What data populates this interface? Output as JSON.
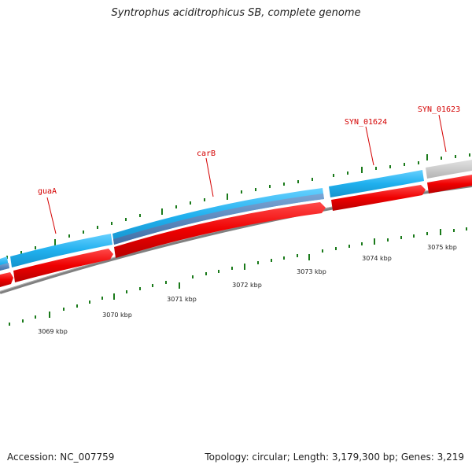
{
  "title": "Syntrophus aciditrophicus SB, complete genome",
  "footer": {
    "accession": "Accession: NC_007759",
    "stats": "Topology: circular; Length: 3,179,300 bp; Genes: 3,219"
  },
  "genes": [
    {
      "name": "guaA"
    },
    {
      "name": "carB"
    },
    {
      "name": "SYN_01624"
    },
    {
      "name": "SYN_01623"
    }
  ],
  "scale_labels": [
    "3069 kbp",
    "3070 kbp",
    "3071 kbp",
    "3072 kbp",
    "3073 kbp",
    "3074 kbp",
    "3075 kbp"
  ],
  "colors": {
    "cds_outline": "#1aa6e6",
    "cds_blue": "#29b7f0",
    "cds_steel": "#4f80b8",
    "cds_red": "#ee0000",
    "cds_grey": "#c8c8c8",
    "backbone": "#808080",
    "tick": "#1a7a1a",
    "label": "#d40000"
  }
}
